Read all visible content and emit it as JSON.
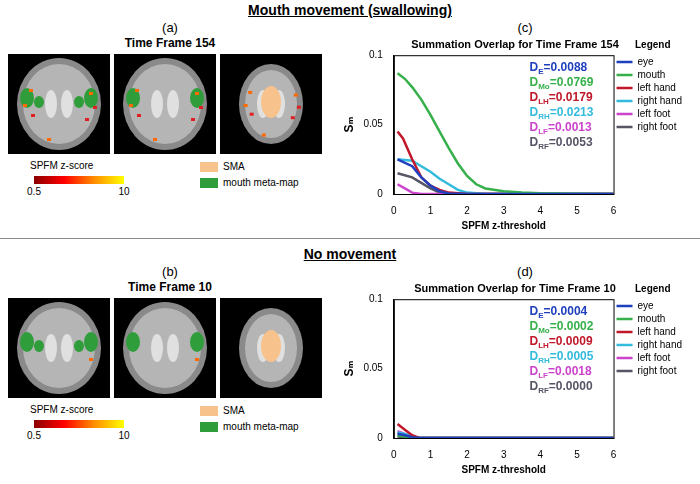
{
  "sections": [
    {
      "header": "Mouth movement (swallowing)",
      "image_panel": {
        "letter": "(a)",
        "title": "Time Frame 154",
        "colorbar": {
          "label": "SPFM z-score",
          "range": [
            0.5,
            10
          ],
          "ticks": [
            0.5,
            10
          ]
        },
        "overlay_legend": [
          {
            "name": "SMA",
            "color": "#f7c28c"
          },
          {
            "name": "mouth meta-map",
            "color": "#2f9e3a"
          }
        ]
      },
      "chart_letter": "(c)"
    },
    {
      "header": "No movement",
      "image_panel": {
        "letter": "(b)",
        "title": "Time Frame 10",
        "colorbar": {
          "label": "SPFM z-score",
          "range": [
            0.5,
            10
          ],
          "ticks": [
            0.5,
            10
          ]
        },
        "overlay_legend": [
          {
            "name": "SMA",
            "color": "#f7c28c"
          },
          {
            "name": "mouth meta-map",
            "color": "#2f9e3a"
          }
        ]
      },
      "chart_letter": "(d)"
    }
  ],
  "chart_data": [
    {
      "type": "line",
      "title": "Summation Overlap for Time Frame 154",
      "xlabel": "SPFM z-threshold",
      "ylabel": "Sₘ",
      "xlim": [
        0,
        6
      ],
      "xticks": [
        0,
        1,
        2,
        3,
        4,
        5,
        6
      ],
      "ylim": [
        0,
        0.1
      ],
      "yticks": [
        0,
        0.05,
        0.1
      ],
      "grid": false,
      "legend": "right",
      "legend_title": "Legend",
      "series": [
        {
          "name": "eye",
          "color": "#1f3fbf",
          "x": [
            0.1,
            0.5,
            0.75,
            1,
            1.25,
            1.5,
            2,
            6
          ],
          "values": [
            0.025,
            0.02,
            0.012,
            0.006,
            0.002,
            0.0003,
            0,
            0
          ]
        },
        {
          "name": "mouth",
          "color": "#35b04a",
          "x": [
            0.1,
            0.3,
            0.5,
            0.75,
            1,
            1.25,
            1.5,
            1.75,
            2,
            2.25,
            2.5,
            3,
            3.5,
            4,
            5,
            6
          ],
          "values": [
            0.087,
            0.083,
            0.077,
            0.068,
            0.057,
            0.045,
            0.033,
            0.022,
            0.013,
            0.007,
            0.004,
            0.002,
            0.001,
            0.0005,
            0.0002,
            0
          ]
        },
        {
          "name": "left hand",
          "color": "#c0182a",
          "x": [
            0.1,
            0.25,
            0.5,
            0.75,
            1,
            1.25,
            1.5,
            2,
            6
          ],
          "values": [
            0.045,
            0.04,
            0.025,
            0.012,
            0.006,
            0.003,
            0.001,
            0,
            0
          ]
        },
        {
          "name": "right hand",
          "color": "#33bbdd",
          "x": [
            0.1,
            0.5,
            0.75,
            1,
            1.25,
            1.5,
            1.75,
            2,
            2.5,
            6
          ],
          "values": [
            0.025,
            0.024,
            0.02,
            0.016,
            0.011,
            0.007,
            0.003,
            0.001,
            0,
            0
          ]
        },
        {
          "name": "left foot",
          "color": "#cc44cc",
          "x": [
            0.1,
            0.3,
            0.5,
            0.75,
            6
          ],
          "values": [
            0.007,
            0.004,
            0.001,
            0,
            0
          ]
        },
        {
          "name": "right foot",
          "color": "#555566",
          "x": [
            0.1,
            0.5,
            0.75,
            1,
            1.25,
            1.5,
            6
          ],
          "values": [
            0.015,
            0.012,
            0.008,
            0.004,
            0.001,
            0,
            0
          ]
        }
      ],
      "annotations": [
        {
          "text": "D",
          "subscript": "E",
          "suffix": "=0.0088",
          "color": "#1f3fbf"
        },
        {
          "text": "D",
          "subscript": "Mo",
          "suffix": "=0.0769",
          "color": "#35b04a"
        },
        {
          "text": "D",
          "subscript": "LH",
          "suffix": "=0.0179",
          "color": "#c0182a"
        },
        {
          "text": "D",
          "subscript": "RH",
          "suffix": "=0.0213",
          "color": "#33bbdd"
        },
        {
          "text": "D",
          "subscript": "LF",
          "suffix": "=0.0013",
          "color": "#cc44cc"
        },
        {
          "text": "D",
          "subscript": "RF",
          "suffix": "=0.0053",
          "color": "#555566"
        }
      ]
    },
    {
      "type": "line",
      "title": "Summation Overlap for Time Frame 10",
      "xlabel": "SPFM z-threshold",
      "ylabel": "Sₘ",
      "xlim": [
        0,
        6
      ],
      "xticks": [
        0,
        1,
        2,
        3,
        4,
        5,
        6
      ],
      "ylim": [
        0,
        0.1
      ],
      "yticks": [
        0,
        0.05,
        0.1
      ],
      "grid": false,
      "legend": "right",
      "legend_title": "Legend",
      "series": [
        {
          "name": "eye",
          "color": "#1f3fbf",
          "x": [
            0.1,
            0.3,
            0.5,
            0.7,
            6
          ],
          "values": [
            0.003,
            0.002,
            0.0005,
            0,
            0
          ]
        },
        {
          "name": "mouth",
          "color": "#35b04a",
          "x": [
            0.1,
            0.3,
            0.5,
            6
          ],
          "values": [
            0.002,
            0.001,
            0,
            0
          ]
        },
        {
          "name": "left hand",
          "color": "#c0182a",
          "x": [
            0.1,
            0.3,
            0.5,
            0.7,
            6
          ],
          "values": [
            0.01,
            0.006,
            0.002,
            0,
            0
          ]
        },
        {
          "name": "right hand",
          "color": "#33bbdd",
          "x": [
            0.1,
            0.3,
            0.5,
            0.7,
            6
          ],
          "values": [
            0.004,
            0.003,
            0.001,
            0,
            0
          ]
        },
        {
          "name": "left foot",
          "color": "#cc44cc",
          "x": [
            0.1,
            0.3,
            0.5,
            0.7,
            6
          ],
          "values": [
            0.005,
            0.003,
            0.001,
            0,
            0
          ]
        },
        {
          "name": "right foot",
          "color": "#555566",
          "x": [
            0.1,
            0.3,
            0.5,
            6
          ],
          "values": [
            0.001,
            0.0005,
            0,
            0
          ]
        }
      ],
      "annotations": [
        {
          "text": "D",
          "subscript": "E",
          "suffix": "=0.0004",
          "color": "#1f3fbf"
        },
        {
          "text": "D",
          "subscript": "Mo",
          "suffix": "=0.0002",
          "color": "#35b04a"
        },
        {
          "text": "D",
          "subscript": "LH",
          "suffix": "=0.0009",
          "color": "#c0182a"
        },
        {
          "text": "D",
          "subscript": "RH",
          "suffix": "=0.0005",
          "color": "#33bbdd"
        },
        {
          "text": "D",
          "subscript": "LF",
          "suffix": "=0.0018",
          "color": "#cc44cc"
        },
        {
          "text": "D",
          "subscript": "RF",
          "suffix": "=0.0000",
          "color": "#555566"
        }
      ]
    }
  ]
}
